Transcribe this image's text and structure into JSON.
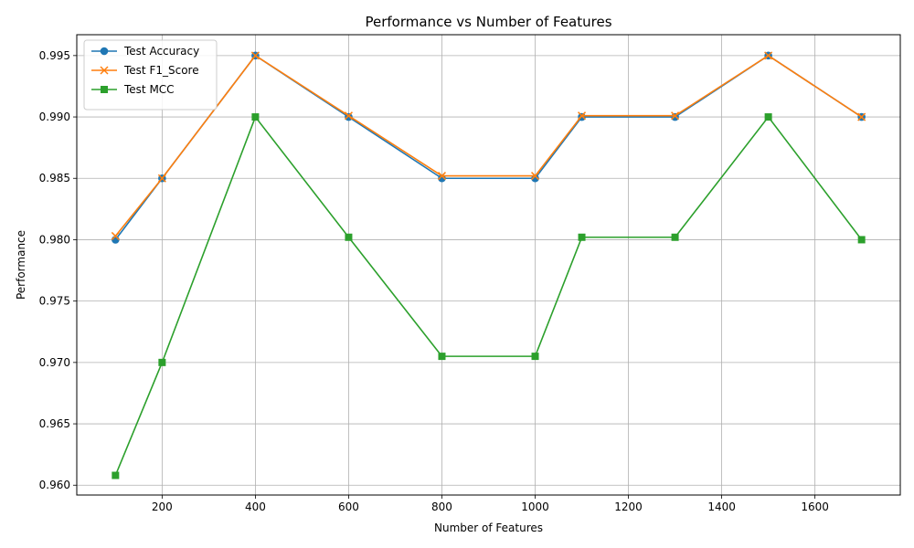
{
  "chart_data": {
    "type": "line",
    "title": "Performance vs Number of Features",
    "xlabel": "Number of Features",
    "ylabel": "Performance",
    "x": [
      100,
      200,
      400,
      600,
      800,
      1000,
      1100,
      1300,
      1500,
      1700
    ],
    "series": [
      {
        "name": "Test Accuracy",
        "color": "#1f77b4",
        "marker": "circle",
        "values": [
          0.98,
          0.985,
          0.995,
          0.99,
          0.985,
          0.985,
          0.99,
          0.99,
          0.995,
          0.99
        ]
      },
      {
        "name": "Test F1_Score",
        "color": "#ff7f0e",
        "marker": "x",
        "values": [
          0.9803,
          0.985,
          0.995,
          0.9901,
          0.9852,
          0.9852,
          0.9901,
          0.9901,
          0.995,
          0.99
        ]
      },
      {
        "name": "Test MCC",
        "color": "#2ca02c",
        "marker": "square",
        "values": [
          0.9608,
          0.97,
          0.99,
          0.9802,
          0.9705,
          0.9705,
          0.9802,
          0.9802,
          0.99,
          0.98
        ]
      }
    ],
    "xlim": [
      17,
      1783
    ],
    "ylim": [
      0.9592,
      0.9967
    ],
    "xticks": [
      200,
      400,
      600,
      800,
      1000,
      1200,
      1400,
      1600
    ],
    "xtick_labels": [
      "200",
      "400",
      "600",
      "800",
      "1000",
      "1200",
      "1400",
      "1600"
    ],
    "yticks": [
      0.96,
      0.965,
      0.97,
      0.975,
      0.98,
      0.985,
      0.99,
      0.995
    ],
    "ytick_labels": [
      "0.960",
      "0.965",
      "0.970",
      "0.975",
      "0.980",
      "0.985",
      "0.990",
      "0.995"
    ],
    "grid": true,
    "legend_position": "top-left"
  }
}
